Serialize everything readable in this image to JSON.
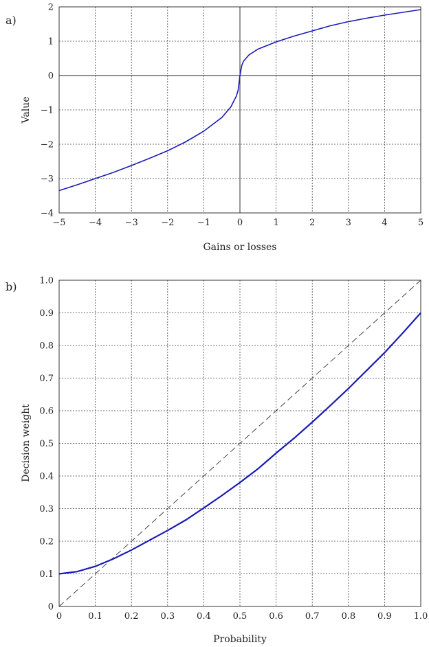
{
  "chart_data": [
    {
      "type": "line",
      "panel_label": "a)",
      "xlabel": "Gains or losses",
      "ylabel": "Value",
      "xlim": [
        -5,
        5
      ],
      "ylim": [
        -4,
        2
      ],
      "x_ticks": [
        -5,
        -4,
        -3,
        -2,
        -1,
        0,
        1,
        2,
        3,
        4,
        5
      ],
      "x_tick_labels": [
        "−5",
        "−4",
        "−3",
        "−2",
        "−1",
        "0",
        "1",
        "2",
        "3",
        "4",
        "5"
      ],
      "y_ticks": [
        -4,
        -3,
        -2,
        -1,
        0,
        1,
        2
      ],
      "y_tick_labels": [
        "−4",
        "−3",
        "−2",
        "−1",
        "0",
        "1",
        "2"
      ],
      "grid": true,
      "reference_lines": [
        {
          "axis": "x",
          "value": 0
        },
        {
          "axis": "y",
          "value": 0
        }
      ],
      "series_color": "#1a1ab8",
      "series": [
        {
          "x": [
            -5,
            -4.5,
            -4,
            -3.5,
            -3,
            -2.5,
            -2,
            -1.5,
            -1,
            -0.5,
            -0.25,
            -0.1,
            -0.05,
            0,
            0.05,
            0.1,
            0.25,
            0.5,
            1,
            1.5,
            2,
            2.5,
            3,
            3.5,
            4,
            4.5,
            5
          ],
          "y": [
            -3.35,
            -3.18,
            -3.0,
            -2.82,
            -2.62,
            -2.41,
            -2.19,
            -1.93,
            -1.62,
            -1.22,
            -0.91,
            -0.6,
            -0.43,
            0,
            0.29,
            0.42,
            0.6,
            0.77,
            0.98,
            1.15,
            1.3,
            1.45,
            1.57,
            1.67,
            1.76,
            1.84,
            1.92
          ]
        }
      ]
    },
    {
      "type": "line",
      "panel_label": "b)",
      "xlabel": "Probability",
      "ylabel": "Decision weight",
      "xlim": [
        0,
        1
      ],
      "ylim": [
        0,
        1
      ],
      "x_ticks": [
        0,
        0.1,
        0.2,
        0.3,
        0.4,
        0.5,
        0.6,
        0.7,
        0.8,
        0.9,
        1.0
      ],
      "x_tick_labels": [
        "0",
        "0.1",
        "0.2",
        "0.3",
        "0.4",
        "0.5",
        "0.6",
        "0.7",
        "0.8",
        "0.9",
        "1.0"
      ],
      "y_ticks": [
        0,
        0.1,
        0.2,
        0.3,
        0.4,
        0.5,
        0.6,
        0.7,
        0.8,
        0.9,
        1.0
      ],
      "y_tick_labels": [
        "0",
        "0.1",
        "0.2",
        "0.3",
        "0.4",
        "0.5",
        "0.6",
        "0.7",
        "0.8",
        "0.9",
        "1.0"
      ],
      "grid": true,
      "reference_diagonal": {
        "from": [
          0,
          0
        ],
        "to": [
          1,
          1
        ],
        "style": "dashed"
      },
      "series_color": "#1a1ab8",
      "series": [
        {
          "x": [
            0,
            0.05,
            0.1,
            0.15,
            0.2,
            0.25,
            0.3,
            0.35,
            0.4,
            0.45,
            0.5,
            0.55,
            0.6,
            0.65,
            0.7,
            0.75,
            0.8,
            0.85,
            0.9,
            0.95,
            1.0
          ],
          "y": [
            0.1,
            0.107,
            0.123,
            0.146,
            0.173,
            0.203,
            0.233,
            0.265,
            0.302,
            0.34,
            0.38,
            0.422,
            0.47,
            0.516,
            0.565,
            0.616,
            0.668,
            0.723,
            0.778,
            0.838,
            0.9
          ]
        }
      ]
    }
  ]
}
